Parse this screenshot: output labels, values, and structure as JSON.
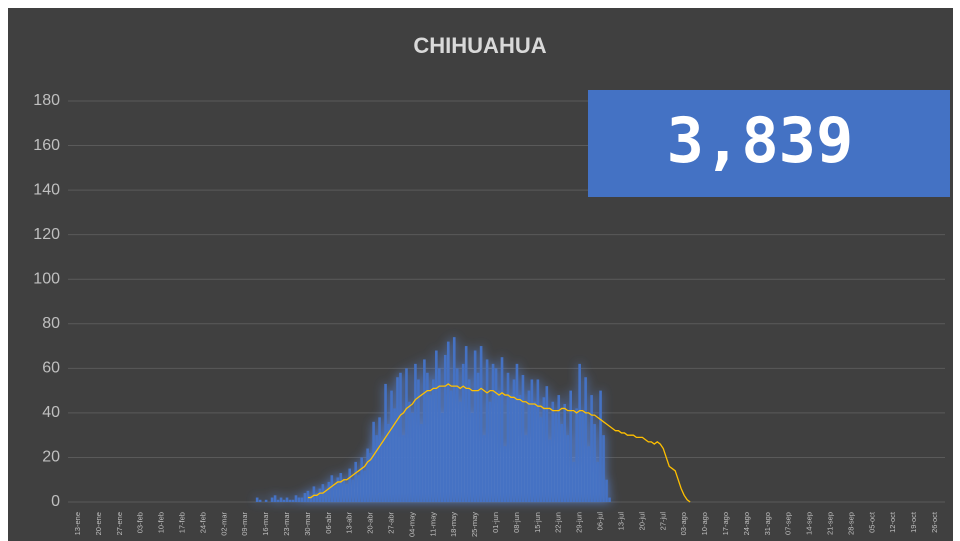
{
  "chart_data": {
    "type": "bar",
    "title": "CHIHUAHUA",
    "annotation": "3,839",
    "categories": [
      "13-ene",
      null,
      null,
      null,
      null,
      null,
      null,
      "20-ene",
      null,
      null,
      null,
      null,
      null,
      null,
      "27-ene",
      null,
      null,
      null,
      null,
      null,
      null,
      "03-feb",
      null,
      null,
      null,
      null,
      null,
      null,
      "10-feb",
      null,
      null,
      null,
      null,
      null,
      null,
      "17-feb",
      null,
      null,
      null,
      null,
      null,
      null,
      "24-feb",
      null,
      null,
      null,
      null,
      null,
      null,
      "02-mar",
      null,
      null,
      null,
      null,
      null,
      null,
      "09-mar",
      null,
      null,
      null,
      null,
      null,
      null,
      "16-mar",
      null,
      null,
      null,
      null,
      null,
      null,
      "23-mar",
      null,
      null,
      null,
      null,
      null,
      null,
      "30-mar",
      null,
      null,
      null,
      null,
      null,
      null,
      "06-abr",
      null,
      null,
      null,
      null,
      null,
      null,
      "13-abr",
      null,
      null,
      null,
      null,
      null,
      null,
      "20-abr",
      null,
      null,
      null,
      null,
      null,
      null,
      "27-abr",
      null,
      null,
      null,
      null,
      null,
      null,
      "04-may",
      null,
      null,
      null,
      null,
      null,
      null,
      "11-may",
      null,
      null,
      null,
      null,
      null,
      null,
      "18-may",
      null,
      null,
      null,
      null,
      null,
      null,
      "25-may",
      null,
      null,
      null,
      null,
      null,
      null,
      "01-jun",
      null,
      null,
      null,
      null,
      null,
      null,
      "08-jun",
      null,
      null,
      null,
      null,
      null,
      null,
      "15-jun",
      null,
      null,
      null,
      null,
      null,
      null,
      "22-jun",
      null,
      null,
      null,
      null,
      null,
      null,
      "29-jun",
      null,
      null,
      null,
      null,
      null,
      null,
      "06-jul",
      null,
      null,
      null,
      null,
      null,
      null,
      "13-jul",
      null,
      null,
      null,
      null,
      null,
      null,
      "20-jul",
      null,
      null,
      null,
      null,
      null,
      null,
      "27-jul",
      null,
      null,
      null,
      null,
      null,
      null,
      "03-ago",
      null,
      null,
      null,
      null,
      null,
      null,
      "10-ago",
      null,
      null,
      null,
      null,
      null,
      null,
      "17-ago",
      null,
      null,
      null,
      null,
      null,
      null,
      "24-ago",
      null,
      null,
      null,
      null,
      null,
      null,
      "31-ago",
      null,
      null,
      null,
      null,
      null,
      null,
      "07-sep",
      null,
      null,
      null,
      null,
      null,
      null,
      "14-sep",
      null,
      null,
      null,
      null,
      null,
      null,
      "21-sep",
      null,
      null,
      null,
      null,
      null,
      null,
      "28-sep",
      null,
      null,
      null,
      null,
      null,
      null,
      "05-oct",
      null,
      null,
      null,
      null,
      null,
      null,
      "12-oct",
      null,
      null,
      null,
      null,
      null,
      null,
      "19-oct",
      null,
      null,
      null,
      null,
      null,
      null,
      "26-oct",
      null,
      null,
      null,
      null,
      null,
      null
    ],
    "series": [
      {
        "type": "bar",
        "color": "#4472c4",
        "values": [
          0,
          0,
          0,
          0,
          0,
          0,
          0,
          0,
          0,
          0,
          0,
          0,
          0,
          0,
          0,
          0,
          0,
          0,
          0,
          0,
          0,
          0,
          0,
          0,
          0,
          0,
          0,
          0,
          0,
          0,
          0,
          0,
          0,
          0,
          0,
          0,
          0,
          0,
          0,
          0,
          0,
          0,
          0,
          0,
          0,
          0,
          0,
          0,
          0,
          0,
          0,
          0,
          0,
          0,
          0,
          0,
          0,
          0,
          0,
          0,
          2,
          1,
          0,
          1,
          0,
          2,
          3,
          1,
          2,
          1,
          2,
          1,
          1,
          3,
          2,
          2,
          4,
          5,
          3,
          7,
          4,
          6,
          8,
          5,
          9,
          12,
          7,
          11,
          13,
          10,
          8,
          15,
          10,
          18,
          12,
          20,
          14,
          24,
          22,
          36,
          30,
          38,
          28,
          53,
          35,
          50,
          42,
          56,
          58,
          30,
          60,
          45,
          40,
          62,
          55,
          35,
          64,
          58,
          48,
          55,
          68,
          60,
          40,
          66,
          72,
          50,
          74,
          60,
          45,
          62,
          70,
          55,
          40,
          68,
          58,
          70,
          30,
          64,
          45,
          62,
          60,
          50,
          65,
          25,
          58,
          48,
          55,
          62,
          48,
          57,
          30,
          50,
          55,
          45,
          55,
          38,
          47,
          52,
          28,
          45,
          40,
          48,
          35,
          44,
          30,
          50,
          18,
          42,
          62,
          40,
          56,
          25,
          48,
          35,
          18,
          50,
          30,
          10,
          2,
          null,
          null,
          null,
          null,
          null,
          null,
          null,
          null,
          null,
          null,
          null,
          null,
          null,
          null,
          null,
          null,
          null,
          null,
          null,
          null,
          null,
          null,
          null,
          null,
          null,
          null,
          null,
          null,
          null,
          null,
          null,
          null,
          null,
          null,
          null,
          null,
          null,
          null,
          null,
          null,
          null,
          null,
          null,
          null,
          null,
          null,
          null,
          null,
          null,
          null,
          null,
          null,
          null,
          null,
          null,
          null,
          null,
          null,
          null,
          null,
          null,
          null,
          null,
          null,
          null,
          null,
          null,
          null,
          null,
          null,
          null,
          null,
          null,
          null,
          null,
          null,
          null,
          null,
          null,
          null,
          null,
          null,
          null,
          null,
          null,
          null,
          null,
          null,
          null,
          null,
          null,
          null,
          null,
          null,
          null,
          null,
          null,
          null,
          null,
          null,
          null,
          null,
          null,
          null,
          null,
          null,
          null,
          null,
          null,
          null,
          null,
          null,
          null,
          null,
          null
        ]
      },
      {
        "type": "line",
        "color": "#ffc000",
        "values": [
          null,
          null,
          null,
          null,
          null,
          null,
          null,
          null,
          null,
          null,
          null,
          null,
          null,
          null,
          null,
          null,
          null,
          null,
          null,
          null,
          null,
          null,
          null,
          null,
          null,
          null,
          null,
          null,
          null,
          null,
          null,
          null,
          null,
          null,
          null,
          null,
          null,
          null,
          null,
          null,
          null,
          null,
          null,
          null,
          null,
          null,
          null,
          null,
          null,
          null,
          null,
          null,
          null,
          null,
          null,
          null,
          null,
          null,
          null,
          null,
          null,
          null,
          null,
          null,
          null,
          null,
          null,
          null,
          null,
          null,
          null,
          null,
          null,
          null,
          null,
          null,
          null,
          2,
          2,
          3,
          3,
          4,
          4,
          5,
          6,
          7,
          8,
          9,
          9,
          10,
          10,
          11,
          12,
          13,
          14,
          15,
          16,
          18,
          19,
          21,
          23,
          25,
          27,
          29,
          31,
          33,
          35,
          37,
          39,
          40,
          42,
          43,
          44,
          46,
          47,
          48,
          49,
          50,
          50,
          51,
          51,
          52,
          52,
          52,
          53,
          52,
          52,
          52,
          51,
          52,
          51,
          51,
          50,
          50,
          50,
          51,
          50,
          49,
          50,
          50,
          49,
          48,
          49,
          48,
          48,
          47,
          47,
          46,
          46,
          45,
          45,
          44,
          44,
          44,
          43,
          43,
          42,
          42,
          42,
          41,
          41,
          41,
          42,
          42,
          41,
          41,
          41,
          40,
          41,
          41,
          40,
          40,
          39,
          39,
          38,
          37,
          36,
          35,
          34,
          33,
          32,
          32,
          31,
          31,
          30,
          30,
          30,
          29,
          29,
          29,
          28,
          27,
          27,
          26,
          27,
          26,
          24,
          20,
          16,
          15,
          14,
          10,
          6,
          3,
          1,
          0,
          null,
          null,
          null,
          null,
          null,
          null,
          null,
          null,
          null,
          null,
          null,
          null,
          null,
          null,
          null,
          null,
          null,
          null,
          null,
          null,
          null,
          null,
          null,
          null,
          null,
          null,
          null,
          null,
          null,
          null,
          null,
          null,
          null,
          null,
          null,
          null,
          null,
          null,
          null,
          null,
          null,
          null,
          null,
          null,
          null,
          null,
          null,
          null,
          null,
          null,
          null,
          null,
          null,
          null,
          null,
          null,
          null,
          null,
          null,
          null,
          null,
          null,
          null,
          null,
          null,
          null,
          null,
          null,
          null,
          null,
          null,
          null,
          null,
          null,
          null,
          null,
          null,
          null,
          null,
          null,
          null,
          null,
          null,
          null,
          null,
          null,
          null,
          null
        ]
      }
    ],
    "ylim": [
      0,
      180
    ],
    "yticks": [
      0,
      20,
      40,
      60,
      80,
      100,
      120,
      140,
      160,
      180
    ],
    "grid": true
  }
}
